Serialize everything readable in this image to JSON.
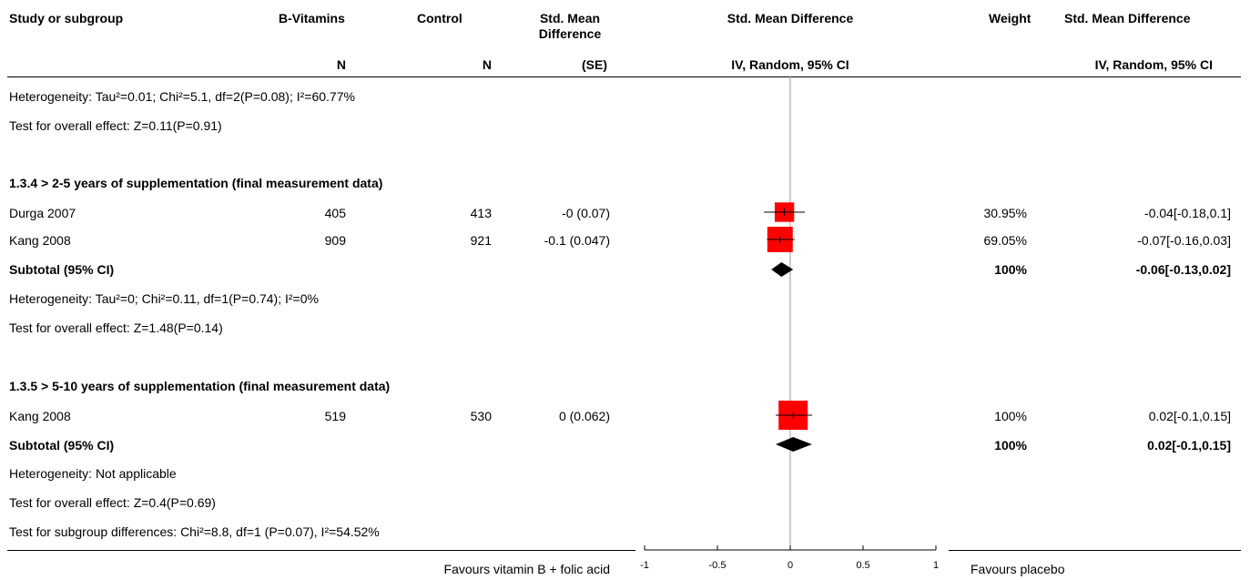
{
  "header": {
    "study": "Study or subgroup",
    "group1": "B-Vitamins",
    "group2": "Control",
    "smd": "Std. Mean Difference",
    "plot": "Std. Mean Difference",
    "weight": "Weight",
    "ci": "Std. Mean Difference",
    "n1": "N",
    "n2": "N",
    "se": "(SE)",
    "plot_sub": "IV, Random, 95% CI",
    "ci_sub": "IV, Random, 95% CI"
  },
  "prev": {
    "heterogeneity": "Heterogeneity: Tau²=0.01; Chi²=5.1, df=2(P=0.08); I²=60.77%",
    "overall": "Test for overall effect: Z=0.11(P=0.91)"
  },
  "sub4": {
    "title": "1.3.4 > 2-5 years of supplementation (final measurement data)",
    "rows": [
      {
        "study": "Durga 2007",
        "n1": "405",
        "n2": "413",
        "smd": "-0 (0.07)",
        "weight": "30.95%",
        "ci": "-0.04[-0.18,0.1]"
      },
      {
        "study": "Kang 2008",
        "n1": "909",
        "n2": "921",
        "smd": "-0.1 (0.047)",
        "weight": "69.05%",
        "ci": "-0.07[-0.16,0.03]"
      }
    ],
    "subtotal_label": "Subtotal (95% CI)",
    "subtotal_weight": "100%",
    "subtotal_ci": "-0.06[-0.13,0.02]",
    "heterogeneity": "Heterogeneity: Tau²=0; Chi²=0.11, df=1(P=0.74); I²=0%",
    "overall": "Test for overall effect: Z=1.48(P=0.14)"
  },
  "sub5": {
    "title": "1.3.5 > 5-10 years of supplementation (final measurement data)",
    "rows": [
      {
        "study": "Kang 2008",
        "n1": "519",
        "n2": "530",
        "smd": "0 (0.062)",
        "weight": "100%",
        "ci": "0.02[-0.1,0.15]"
      }
    ],
    "subtotal_label": "Subtotal (95% CI)",
    "subtotal_weight": "100%",
    "subtotal_ci": "0.02[-0.1,0.15]",
    "heterogeneity": "Heterogeneity: Not applicable",
    "overall": "Test for overall effect: Z=0.4(P=0.69)"
  },
  "subgroup_test": "Test for subgroup differences: Chi²=8.8, df=1 (P=0.07), I²=54.52%",
  "footer": {
    "favours_left": "Favours vitamin B + folic acid",
    "favours_right": "Favours placebo"
  },
  "colors": {
    "square": "#ff0000",
    "diamond": "#000000",
    "axis": "#000000",
    "zero_line": "#999999"
  },
  "chart_data": {
    "type": "forest",
    "xlim": [
      -1,
      1
    ],
    "x_ticks": [
      -1,
      -0.5,
      0,
      0.5,
      1
    ],
    "x_tick_labels": [
      "-1",
      "-0.5",
      "0",
      "0.5",
      "1"
    ],
    "studies": [
      {
        "name": "Durga 2007",
        "subgroup": "1.3.4",
        "estimate": -0.04,
        "ci": [
          -0.18,
          0.1
        ],
        "weight": 30.95
      },
      {
        "name": "Kang 2008",
        "subgroup": "1.3.4",
        "estimate": -0.07,
        "ci": [
          -0.16,
          0.03
        ],
        "weight": 69.05
      },
      {
        "name": "Kang 2008",
        "subgroup": "1.3.5",
        "estimate": 0.02,
        "ci": [
          -0.1,
          0.15
        ],
        "weight": 100
      }
    ],
    "subtotals": [
      {
        "subgroup": "1.3.4",
        "estimate": -0.06,
        "ci": [
          -0.13,
          0.02
        ],
        "weight": 100
      },
      {
        "subgroup": "1.3.5",
        "estimate": 0.02,
        "ci": [
          -0.1,
          0.15
        ],
        "weight": 100
      }
    ]
  }
}
